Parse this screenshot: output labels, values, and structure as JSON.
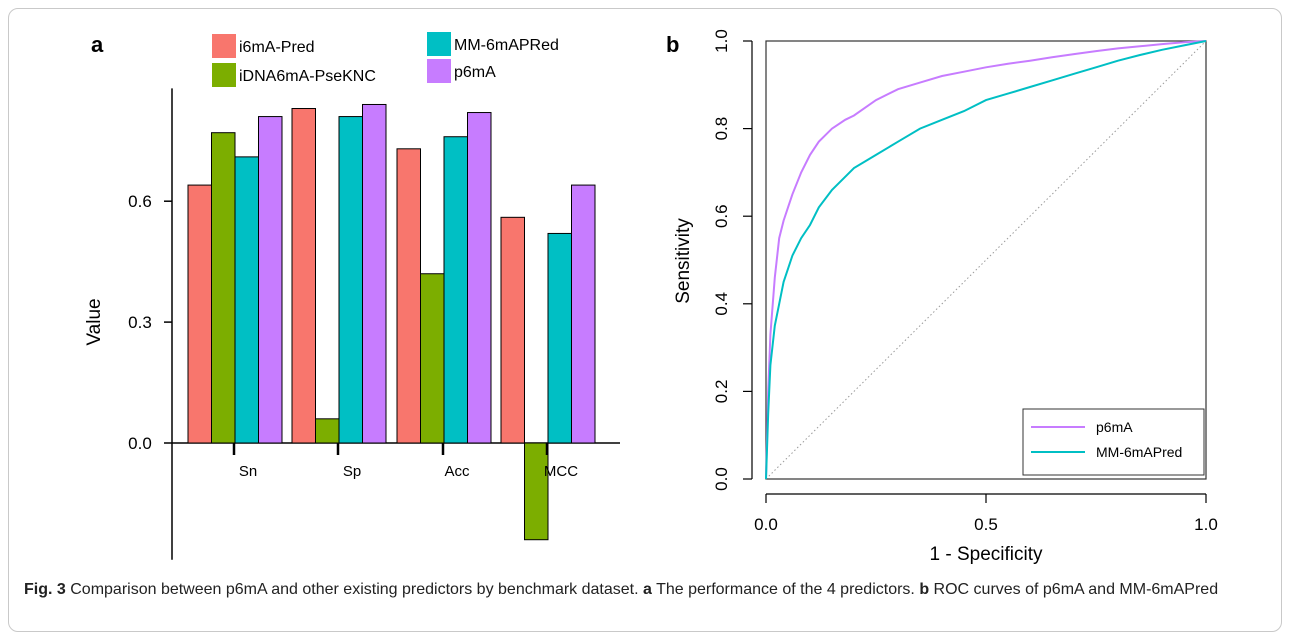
{
  "caption": {
    "label": "Fig. 3",
    "text": "Comparison between p6mA and other existing predictors by benchmark dataset.",
    "part_a_label": "a",
    "part_a_text": "The performance of the 4 predictors.",
    "part_b_label": "b",
    "part_b_text": "ROC curves of p6mA and MM-6mAPred"
  },
  "chart_data": [
    {
      "type": "bar",
      "panel_label": "a",
      "ylabel": "Value",
      "xlabel": "",
      "ylim": [
        -0.24,
        0.88
      ],
      "yticks": [
        0.0,
        0.3,
        0.6
      ],
      "ytick_labels": [
        "0.0",
        "0.3",
        "0.6"
      ],
      "categories": [
        "Sn",
        "Sp",
        "Acc",
        "MCC"
      ],
      "legend_position": "top",
      "series": [
        {
          "name": "i6mA-Pred",
          "color": "#F8766D",
          "values": [
            0.64,
            0.83,
            0.73,
            0.56
          ]
        },
        {
          "name": "iDNA6mA-PseKNC",
          "color": "#7CAE00",
          "values": [
            0.77,
            0.06,
            0.42,
            -0.24
          ]
        },
        {
          "name": "MM-6mAPRed",
          "color": "#00BFC4",
          "values": [
            0.71,
            0.81,
            0.76,
            0.52
          ]
        },
        {
          "name": "p6mA",
          "color": "#C77CFF",
          "values": [
            0.81,
            0.84,
            0.82,
            0.64
          ]
        }
      ]
    },
    {
      "type": "line",
      "panel_label": "b",
      "xlabel": "1 - Specificity",
      "ylabel": "Sensitivity",
      "xlim": [
        0,
        1
      ],
      "ylim": [
        0,
        1
      ],
      "xticks": [
        0.0,
        0.5,
        1.0
      ],
      "xtick_labels": [
        "0.0",
        "0.5",
        "1.0"
      ],
      "yticks": [
        0.0,
        0.2,
        0.4,
        0.6,
        0.8,
        1.0
      ],
      "ytick_labels": [
        "0.0",
        "0.2",
        "0.4",
        "0.6",
        "0.8",
        "1.0"
      ],
      "diagonal_reference": true,
      "legend_position": "bottom-right",
      "series": [
        {
          "name": "p6mA",
          "color": "#C77CFF",
          "x": [
            0,
            0.005,
            0.01,
            0.02,
            0.03,
            0.04,
            0.05,
            0.06,
            0.08,
            0.1,
            0.12,
            0.15,
            0.18,
            0.2,
            0.25,
            0.3,
            0.35,
            0.4,
            0.45,
            0.5,
            0.55,
            0.6,
            0.65,
            0.7,
            0.75,
            0.8,
            0.85,
            0.9,
            0.95,
            1.0
          ],
          "y": [
            0,
            0.2,
            0.33,
            0.46,
            0.55,
            0.59,
            0.62,
            0.65,
            0.7,
            0.74,
            0.77,
            0.8,
            0.82,
            0.83,
            0.865,
            0.89,
            0.905,
            0.92,
            0.93,
            0.94,
            0.948,
            0.955,
            0.963,
            0.97,
            0.977,
            0.983,
            0.988,
            0.993,
            0.997,
            1.0
          ]
        },
        {
          "name": "MM-6mAPred",
          "color": "#00BFC4",
          "x": [
            0,
            0.005,
            0.01,
            0.02,
            0.03,
            0.04,
            0.05,
            0.06,
            0.08,
            0.1,
            0.12,
            0.15,
            0.18,
            0.2,
            0.25,
            0.3,
            0.35,
            0.4,
            0.45,
            0.5,
            0.55,
            0.6,
            0.65,
            0.7,
            0.75,
            0.8,
            0.85,
            0.9,
            0.95,
            1.0
          ],
          "y": [
            0,
            0.15,
            0.26,
            0.35,
            0.4,
            0.45,
            0.48,
            0.51,
            0.55,
            0.58,
            0.62,
            0.66,
            0.69,
            0.71,
            0.74,
            0.77,
            0.8,
            0.82,
            0.84,
            0.865,
            0.88,
            0.895,
            0.91,
            0.925,
            0.94,
            0.955,
            0.968,
            0.98,
            0.99,
            1.0
          ]
        }
      ]
    }
  ]
}
